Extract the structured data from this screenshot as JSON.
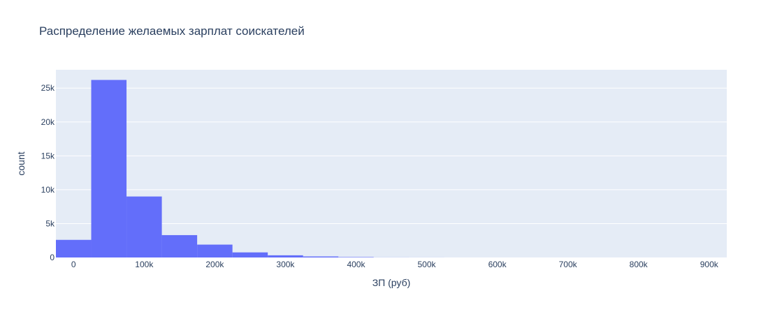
{
  "chart_data": {
    "type": "bar",
    "title": "Распределение желаемых зарплат соискателей",
    "xlabel": "ЗП (руб)",
    "ylabel": "count",
    "xlim": [
      -25000,
      925000
    ],
    "ylim": [
      0,
      27700
    ],
    "bin_width": 50000,
    "bins": [
      {
        "x0": -25000,
        "x1": 25000,
        "value": 2600
      },
      {
        "x0": 25000,
        "x1": 75000,
        "value": 26200
      },
      {
        "x0": 75000,
        "x1": 125000,
        "value": 9000
      },
      {
        "x0": 125000,
        "x1": 175000,
        "value": 3300
      },
      {
        "x0": 175000,
        "x1": 225000,
        "value": 1900
      },
      {
        "x0": 225000,
        "x1": 275000,
        "value": 750
      },
      {
        "x0": 275000,
        "x1": 325000,
        "value": 320
      },
      {
        "x0": 325000,
        "x1": 375000,
        "value": 150
      },
      {
        "x0": 375000,
        "x1": 425000,
        "value": 60
      },
      {
        "x0": 425000,
        "x1": 475000,
        "value": 10
      },
      {
        "x0": 475000,
        "x1": 525000,
        "value": 5
      }
    ],
    "x_ticks": [
      {
        "value": 0,
        "label": "0"
      },
      {
        "value": 100000,
        "label": "100k"
      },
      {
        "value": 200000,
        "label": "200k"
      },
      {
        "value": 300000,
        "label": "300k"
      },
      {
        "value": 400000,
        "label": "400k"
      },
      {
        "value": 500000,
        "label": "500k"
      },
      {
        "value": 600000,
        "label": "600k"
      },
      {
        "value": 700000,
        "label": "700k"
      },
      {
        "value": 800000,
        "label": "800k"
      },
      {
        "value": 900000,
        "label": "900k"
      }
    ],
    "y_ticks": [
      {
        "value": 0,
        "label": "0"
      },
      {
        "value": 5000,
        "label": "5k"
      },
      {
        "value": 10000,
        "label": "10k"
      },
      {
        "value": 15000,
        "label": "15k"
      },
      {
        "value": 20000,
        "label": "20k"
      },
      {
        "value": 25000,
        "label": "25k"
      }
    ],
    "grid": true,
    "colors": {
      "bar": "#636efa",
      "plot_bg": "#e5ecf6",
      "grid": "#ffffff",
      "text": "#2a3f5f"
    }
  }
}
